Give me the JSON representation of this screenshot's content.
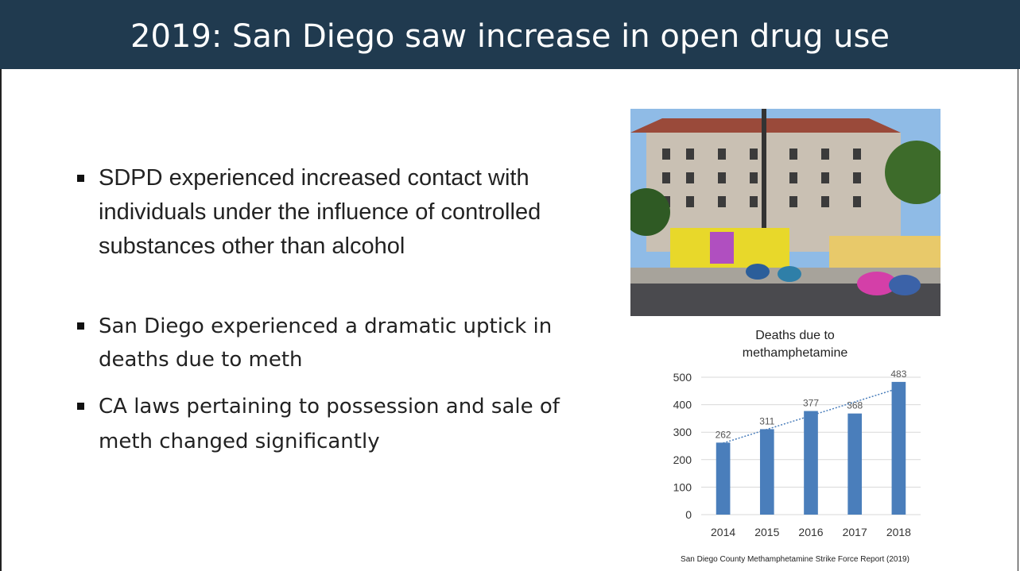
{
  "title": "2019: San Diego saw increase in open drug use",
  "bullets": [
    "SDPD experienced increased contact with individuals under the influence of controlled substances other than alcohol",
    "San Diego experienced a dramatic uptick in deaths due to meth",
    "CA laws pertaining to possession and sale of meth changed significantly"
  ],
  "chart_data": {
    "type": "bar",
    "title": "Deaths due to methamphetamine",
    "categories": [
      "2014",
      "2015",
      "2016",
      "2017",
      "2018"
    ],
    "values": [
      262,
      311,
      377,
      368,
      483
    ],
    "color": "#4a7ebb",
    "ylim": [
      0,
      500
    ],
    "yticks": [
      0,
      100,
      200,
      300,
      400,
      500
    ],
    "grid": true,
    "trendline": "linear"
  },
  "source": "San Diego County Methamphetamine Strike Force Report (2019)"
}
